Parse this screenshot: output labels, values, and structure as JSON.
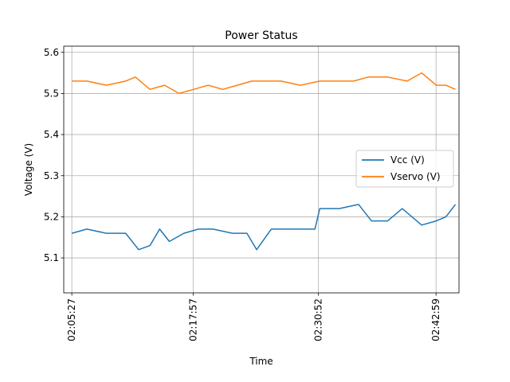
{
  "chart_data": {
    "type": "line",
    "title": "Power Status",
    "xlabel": "Time",
    "ylabel": "Voltage (V)",
    "x_ticks": [
      "02:05:27",
      "02:17:57",
      "02:30:52",
      "02:42:59"
    ],
    "xlim": [
      "02:04:37",
      "02:45:21"
    ],
    "ylim": [
      5.015,
      5.615
    ],
    "y_ticks": [
      5.1,
      5.2,
      5.3,
      5.4,
      5.5,
      5.6
    ],
    "grid": true,
    "legend_position": "center-right",
    "series": [
      {
        "name": "Vcc (V)",
        "color": "#1f77b4",
        "x": [
          "02:05:27",
          "02:07:00",
          "02:09:00",
          "02:11:00",
          "02:12:20",
          "02:13:30",
          "02:14:30",
          "02:15:30",
          "02:17:00",
          "02:18:30",
          "02:20:00",
          "02:22:00",
          "02:23:30",
          "02:24:30",
          "02:26:00",
          "02:28:00",
          "02:30:30",
          "02:31:00",
          "02:33:00",
          "02:35:00",
          "02:36:20",
          "02:38:00",
          "02:39:30",
          "02:41:30",
          "02:43:00",
          "02:44:00",
          "02:44:59"
        ],
        "values": [
          5.16,
          5.17,
          5.16,
          5.16,
          5.12,
          5.13,
          5.17,
          5.14,
          5.16,
          5.17,
          5.17,
          5.16,
          5.16,
          5.12,
          5.17,
          5.17,
          5.17,
          5.22,
          5.22,
          5.23,
          5.19,
          5.19,
          5.22,
          5.18,
          5.19,
          5.2,
          5.23
        ]
      },
      {
        "name": "Vservo (V)",
        "color": "#ff7f0e",
        "x": [
          "02:05:27",
          "02:07:00",
          "02:09:00",
          "02:11:00",
          "02:12:00",
          "02:13:30",
          "02:15:00",
          "02:16:30",
          "02:18:00",
          "02:19:30",
          "02:21:00",
          "02:22:30",
          "02:24:00",
          "02:25:30",
          "02:27:00",
          "02:29:00",
          "02:31:00",
          "02:33:00",
          "02:34:30",
          "02:36:00",
          "02:38:00",
          "02:40:00",
          "02:41:30",
          "02:43:00",
          "02:44:00",
          "02:44:59"
        ],
        "values": [
          5.53,
          5.53,
          5.52,
          5.53,
          5.54,
          5.51,
          5.52,
          5.5,
          5.51,
          5.52,
          5.51,
          5.52,
          5.53,
          5.53,
          5.53,
          5.52,
          5.53,
          5.53,
          5.53,
          5.54,
          5.54,
          5.53,
          5.55,
          5.52,
          5.52,
          5.51
        ]
      }
    ]
  }
}
